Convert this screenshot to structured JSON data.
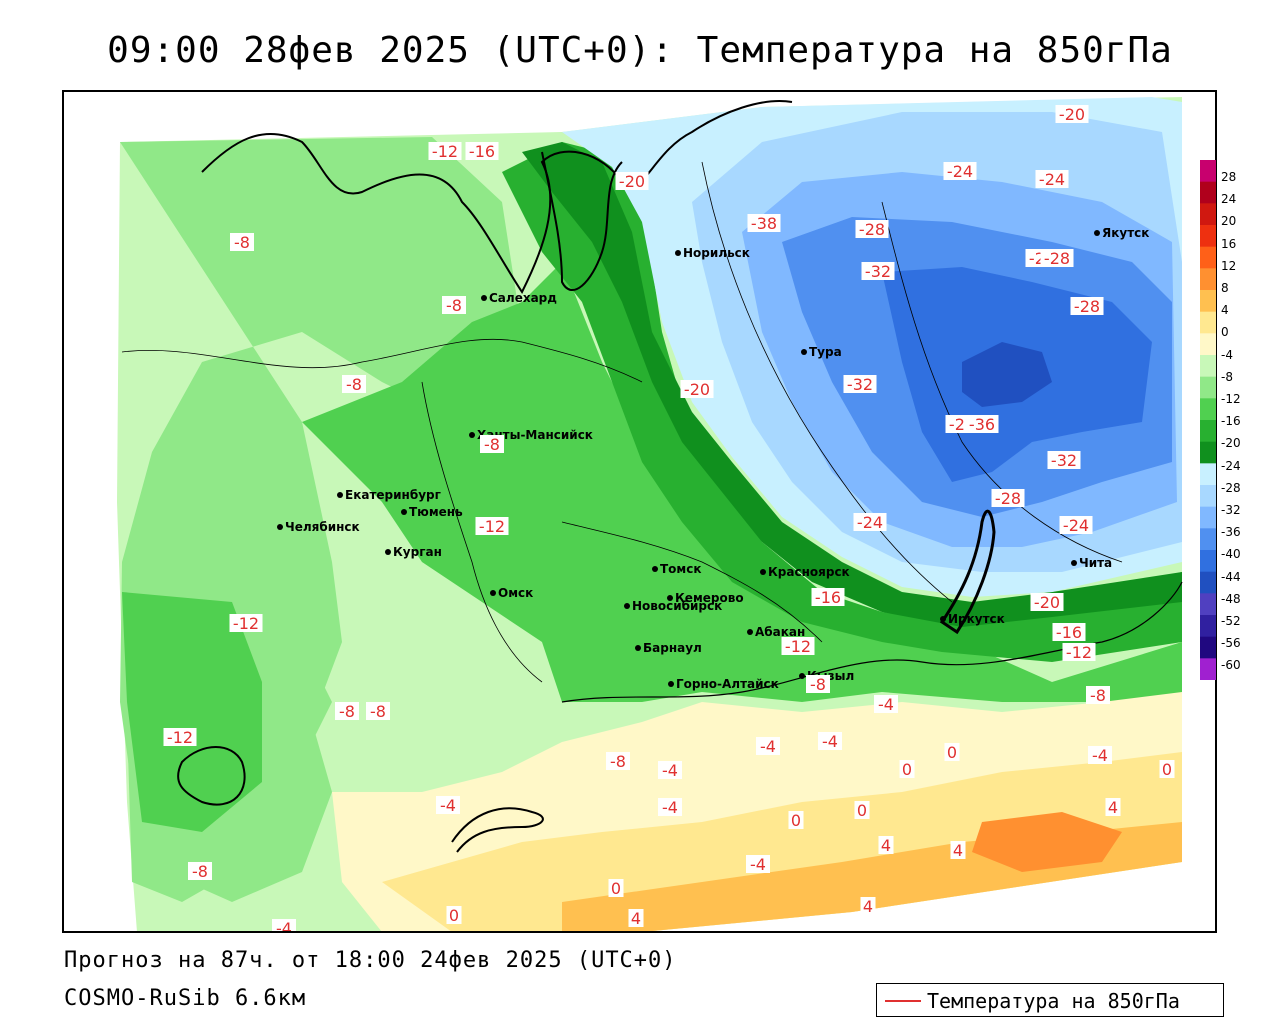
{
  "title": "09:00 28фев 2025 (UTC+0): Температура на 850гПа",
  "forecast_line": "Прогноз на 87ч. от 18:00 24фев 2025 (UTC+0)",
  "model_line": "COSMO-RuSib 6.6км",
  "legend": {
    "label": "Температура на 850гПа",
    "line_color": "#e03030"
  },
  "colorbar": {
    "ticks": [
      "28",
      "24",
      "20",
      "16",
      "12",
      "8",
      "4",
      "0",
      "-4",
      "-8",
      "-12",
      "-16",
      "-20",
      "-24",
      "-28",
      "-32",
      "-36",
      "-40",
      "-44",
      "-48",
      "-52",
      "-56",
      "-60"
    ],
    "colors": [
      "#c8006e",
      "#b0001c",
      "#d01810",
      "#ee3010",
      "#ff6018",
      "#ff9030",
      "#ffc050",
      "#ffe890",
      "#fff8c8",
      "#c8f8b8",
      "#90e888",
      "#50d050",
      "#28b030",
      "#10901e",
      "#c8f0ff",
      "#a8d8ff",
      "#80b8ff",
      "#5090f0",
      "#3070e0",
      "#2050c0",
      "#5040c0",
      "#3020a0",
      "#200880",
      "#a020d0"
    ]
  },
  "cities": [
    {
      "name": "Салехард"
    },
    {
      "name": "Норильск"
    },
    {
      "name": "Тура"
    },
    {
      "name": "Якутск"
    },
    {
      "name": "Ханты-Мансийск"
    },
    {
      "name": "Екатеринбург"
    },
    {
      "name": "Тюмень"
    },
    {
      "name": "Челябинск"
    },
    {
      "name": "Курган"
    },
    {
      "name": "Омск"
    },
    {
      "name": "Новосибирск"
    },
    {
      "name": "Томск"
    },
    {
      "name": "Кемерово"
    },
    {
      "name": "Красноярск"
    },
    {
      "name": "Барнаул"
    },
    {
      "name": "Абакан"
    },
    {
      "name": "Иркутск"
    },
    {
      "name": "Кызыл"
    },
    {
      "name": "Горно-Алтайск"
    },
    {
      "name": "Чита"
    }
  ],
  "isotherm_labels": [
    "-12",
    "-16",
    "-20",
    "-20",
    "-38",
    "-28",
    "-24",
    "-24",
    "-20",
    "-28",
    "-32",
    "-28",
    "-32",
    "-8",
    "-8",
    "-8",
    "-8",
    "-20",
    "-28",
    "-36",
    "-32",
    "-28",
    "-12",
    "-24",
    "-24",
    "-16",
    "-20",
    "-16",
    "-12",
    "-12",
    "-12",
    "-8",
    "-12",
    "-8",
    "-8",
    "-4",
    "-8",
    "-4",
    "-4",
    "-4",
    "-4",
    "-4",
    "-8",
    "0",
    "0",
    "-4",
    "0",
    "4",
    "0",
    "4",
    "0",
    "4",
    "-4",
    "4",
    "0",
    "4",
    "-8",
    "-4",
    "0"
  ]
}
